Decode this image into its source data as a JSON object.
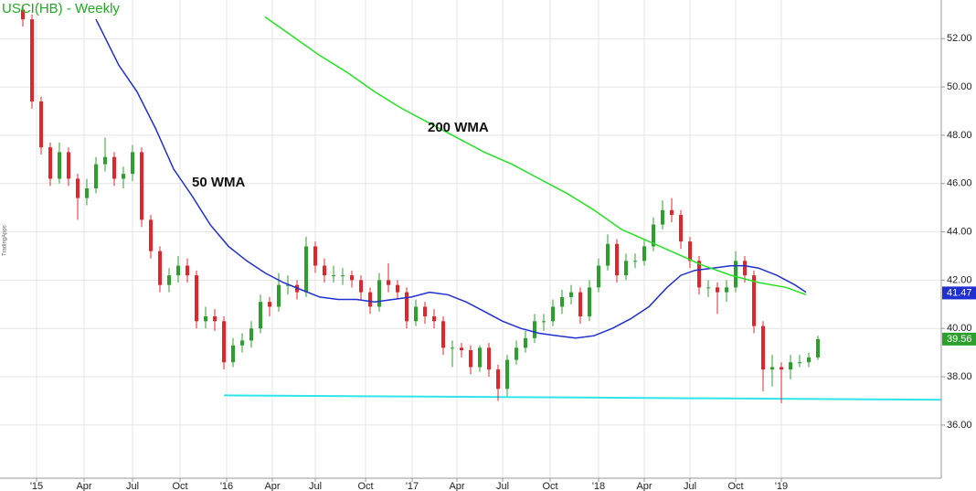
{
  "chart_data": {
    "type": "candlestick",
    "title": "USCI(HB) - Weekly",
    "watermark": "TradingApps",
    "up_color": "#2ca02c",
    "down_color": "#e3242b",
    "candles": [
      [
        53.2,
        53.4,
        52.5,
        52.8
      ],
      [
        52.8,
        53.0,
        49.1,
        49.4
      ],
      [
        49.4,
        49.6,
        47.2,
        47.5
      ],
      [
        47.5,
        47.7,
        45.9,
        46.2
      ],
      [
        46.2,
        47.7,
        46.0,
        47.3
      ],
      [
        47.3,
        47.5,
        45.9,
        46.2
      ],
      [
        46.2,
        46.4,
        44.5,
        45.4
      ],
      [
        45.4,
        46.2,
        45.1,
        45.8
      ],
      [
        45.8,
        47.1,
        45.6,
        46.8
      ],
      [
        46.8,
        47.9,
        46.5,
        47.1
      ],
      [
        47.1,
        47.3,
        45.9,
        46.2
      ],
      [
        46.2,
        46.7,
        45.8,
        46.4
      ],
      [
        46.4,
        47.6,
        46.1,
        47.3
      ],
      [
        47.3,
        47.5,
        44.2,
        44.5
      ],
      [
        44.5,
        44.7,
        42.9,
        43.2
      ],
      [
        43.2,
        43.4,
        41.5,
        41.8
      ],
      [
        41.8,
        42.5,
        41.5,
        42.2
      ],
      [
        42.2,
        43.0,
        41.9,
        42.6
      ],
      [
        42.6,
        42.9,
        41.9,
        42.2
      ],
      [
        42.2,
        42.4,
        40.0,
        40.3
      ],
      [
        40.3,
        40.9,
        40.0,
        40.5
      ],
      [
        40.5,
        40.8,
        39.9,
        40.3
      ],
      [
        40.3,
        40.5,
        38.3,
        38.6
      ],
      [
        38.6,
        39.6,
        38.4,
        39.3
      ],
      [
        39.3,
        39.8,
        39.0,
        39.5
      ],
      [
        39.5,
        40.3,
        39.2,
        40.0
      ],
      [
        40.0,
        41.4,
        39.8,
        41.1
      ],
      [
        41.1,
        41.3,
        40.5,
        40.9
      ],
      [
        40.9,
        42.3,
        40.7,
        41.8
      ],
      [
        41.8,
        42.2,
        41.4,
        41.8
      ],
      [
        41.8,
        42.0,
        41.2,
        41.5
      ],
      [
        41.5,
        43.8,
        41.3,
        43.4
      ],
      [
        43.4,
        43.6,
        42.3,
        42.6
      ],
      [
        42.6,
        42.9,
        41.9,
        42.2
      ],
      [
        42.2,
        42.6,
        41.9,
        42.2
      ],
      [
        42.2,
        42.5,
        41.8,
        42.2
      ],
      [
        42.2,
        42.4,
        41.7,
        42.0
      ],
      [
        42.0,
        42.2,
        41.2,
        41.5
      ],
      [
        41.5,
        41.7,
        40.6,
        40.9
      ],
      [
        40.9,
        42.3,
        40.7,
        42.0
      ],
      [
        42.0,
        42.7,
        41.5,
        41.8
      ],
      [
        41.8,
        42.0,
        41.2,
        41.5
      ],
      [
        41.5,
        41.7,
        40.0,
        40.3
      ],
      [
        40.3,
        41.2,
        40.1,
        40.9
      ],
      [
        40.9,
        41.1,
        40.2,
        40.5
      ],
      [
        40.5,
        40.8,
        40.0,
        40.3
      ],
      [
        40.3,
        40.5,
        38.9,
        39.2
      ],
      [
        39.2,
        39.5,
        38.4,
        39.2
      ],
      [
        39.2,
        39.4,
        38.8,
        39.1
      ],
      [
        39.1,
        39.3,
        38.1,
        38.4
      ],
      [
        38.4,
        39.3,
        38.2,
        39.2
      ],
      [
        39.2,
        39.4,
        38.0,
        38.3
      ],
      [
        38.3,
        38.5,
        37.0,
        37.5
      ],
      [
        37.5,
        38.9,
        37.2,
        38.7
      ],
      [
        38.7,
        39.5,
        38.5,
        39.2
      ],
      [
        39.2,
        39.9,
        39.0,
        39.6
      ],
      [
        39.6,
        40.6,
        39.4,
        40.3
      ],
      [
        40.3,
        40.6,
        39.9,
        40.3
      ],
      [
        40.3,
        41.2,
        40.1,
        40.9
      ],
      [
        40.9,
        41.6,
        40.6,
        41.3
      ],
      [
        41.3,
        41.8,
        41.0,
        41.5
      ],
      [
        41.5,
        41.7,
        40.2,
        40.5
      ],
      [
        40.5,
        42.0,
        40.3,
        41.7
      ],
      [
        41.7,
        42.9,
        41.5,
        42.6
      ],
      [
        42.6,
        43.9,
        42.4,
        43.5
      ],
      [
        43.5,
        43.7,
        41.9,
        42.2
      ],
      [
        42.2,
        43.1,
        42.0,
        42.8
      ],
      [
        42.8,
        43.1,
        42.5,
        42.8
      ],
      [
        42.8,
        43.7,
        42.6,
        43.4
      ],
      [
        43.4,
        44.6,
        43.2,
        44.3
      ],
      [
        44.3,
        45.3,
        44.1,
        44.9
      ],
      [
        44.9,
        45.4,
        44.4,
        44.7
      ],
      [
        44.7,
        44.9,
        43.3,
        43.6
      ],
      [
        43.6,
        43.8,
        42.5,
        42.8
      ],
      [
        42.8,
        43.0,
        41.4,
        41.7
      ],
      [
        41.7,
        42.0,
        41.3,
        41.7
      ],
      [
        41.7,
        41.9,
        40.6,
        41.5
      ],
      [
        41.5,
        42.0,
        41.1,
        41.7
      ],
      [
        41.7,
        43.2,
        41.5,
        42.8
      ],
      [
        42.8,
        43.0,
        41.9,
        42.2
      ],
      [
        42.2,
        42.4,
        39.8,
        40.1
      ],
      [
        40.1,
        40.3,
        37.4,
        38.3
      ],
      [
        38.3,
        38.9,
        37.6,
        38.4
      ],
      [
        38.4,
        38.6,
        36.9,
        38.3
      ],
      [
        38.3,
        38.9,
        37.9,
        38.6
      ],
      [
        38.6,
        38.9,
        38.4,
        38.6
      ],
      [
        38.6,
        39.0,
        38.4,
        38.8
      ],
      [
        38.8,
        39.7,
        38.7,
        39.56
      ]
    ],
    "series": [
      {
        "name": "50 WMA",
        "color": "#1f2fd0",
        "x": [
          8,
          10.5,
          12.5,
          14.5,
          16.5,
          18.5,
          20.5,
          22.5,
          24.5,
          26.5,
          28.5,
          30.5,
          32.5,
          34.5,
          36.5,
          38.5,
          40.5,
          42.5,
          44.5,
          46.5,
          48.5,
          50.5,
          52.5,
          54.5,
          56.5,
          58.5,
          60.5,
          62.5,
          64.5,
          66.5,
          68.5,
          70.5,
          72,
          73.5,
          75.5,
          77.5,
          79,
          80.5,
          82.5,
          84.5,
          85.7
        ],
        "values": [
          52.8,
          50.9,
          49.8,
          48.3,
          46.6,
          45.5,
          44.3,
          43.4,
          42.8,
          42.3,
          41.9,
          41.6,
          41.3,
          41.2,
          41.2,
          41.1,
          41.2,
          41.3,
          41.5,
          41.4,
          41.1,
          40.7,
          40.3,
          40.0,
          39.8,
          39.7,
          39.6,
          39.7,
          40.0,
          40.4,
          40.9,
          41.7,
          42.2,
          42.4,
          42.5,
          42.6,
          42.6,
          42.5,
          42.2,
          41.8,
          41.5
        ]
      },
      {
        "name": "200 WMA",
        "color": "#22e322",
        "x": [
          26.5,
          29.5,
          32.5,
          35.5,
          38.5,
          41.5,
          44.5,
          47.5,
          50.5,
          53.5,
          56.5,
          59.5,
          62.5,
          65.5,
          68.5,
          71.5,
          74.5,
          77.5,
          80.5,
          83.5,
          85.7
        ],
        "values": [
          52.9,
          52.1,
          51.3,
          50.6,
          49.8,
          49.1,
          48.5,
          47.9,
          47.3,
          46.8,
          46.2,
          45.6,
          44.9,
          44.1,
          43.6,
          43.1,
          42.6,
          42.2,
          41.9,
          41.7,
          41.4
        ]
      }
    ],
    "support": {
      "color": "#2ee6ea",
      "x": [
        22,
        100.5
      ],
      "values": [
        37.23,
        37.05
      ]
    },
    "price_labels": [
      {
        "value": 41.47,
        "color": "#1f2fd0"
      },
      {
        "value": 39.56,
        "color": "#2ca02c"
      }
    ],
    "xlim": [
      -0.5,
      100.5
    ],
    "ylim": [
      33.8,
      53.6
    ],
    "xticks": [
      {
        "value": 1.5,
        "label": "'15"
      },
      {
        "value": 6.7,
        "label": "Apr"
      },
      {
        "value": 12,
        "label": "Jul"
      },
      {
        "value": 17.2,
        "label": "Oct"
      },
      {
        "value": 22.3,
        "label": "'16"
      },
      {
        "value": 27.3,
        "label": "Apr"
      },
      {
        "value": 32,
        "label": "Jul"
      },
      {
        "value": 37.5,
        "label": "Oct"
      },
      {
        "value": 42.6,
        "label": "'17"
      },
      {
        "value": 47.5,
        "label": "Apr"
      },
      {
        "value": 52.5,
        "label": "Jul"
      },
      {
        "value": 57.7,
        "label": "Oct"
      },
      {
        "value": 63,
        "label": "'18"
      },
      {
        "value": 68,
        "label": "Apr"
      },
      {
        "value": 73,
        "label": "Jul"
      },
      {
        "value": 78,
        "label": "Oct"
      },
      {
        "value": 83,
        "label": "'19"
      }
    ],
    "yticks": [
      {
        "value": 36,
        "label": "36.00"
      },
      {
        "value": 38,
        "label": "38.00"
      },
      {
        "value": 40,
        "label": "40.00"
      },
      {
        "value": 42,
        "label": "42.00"
      },
      {
        "value": 44,
        "label": "44.00"
      },
      {
        "value": 46,
        "label": "46.00"
      },
      {
        "value": 48,
        "label": "48.00"
      },
      {
        "value": 50,
        "label": "50.00"
      },
      {
        "value": 52,
        "label": "52.00"
      }
    ],
    "grid": true
  }
}
